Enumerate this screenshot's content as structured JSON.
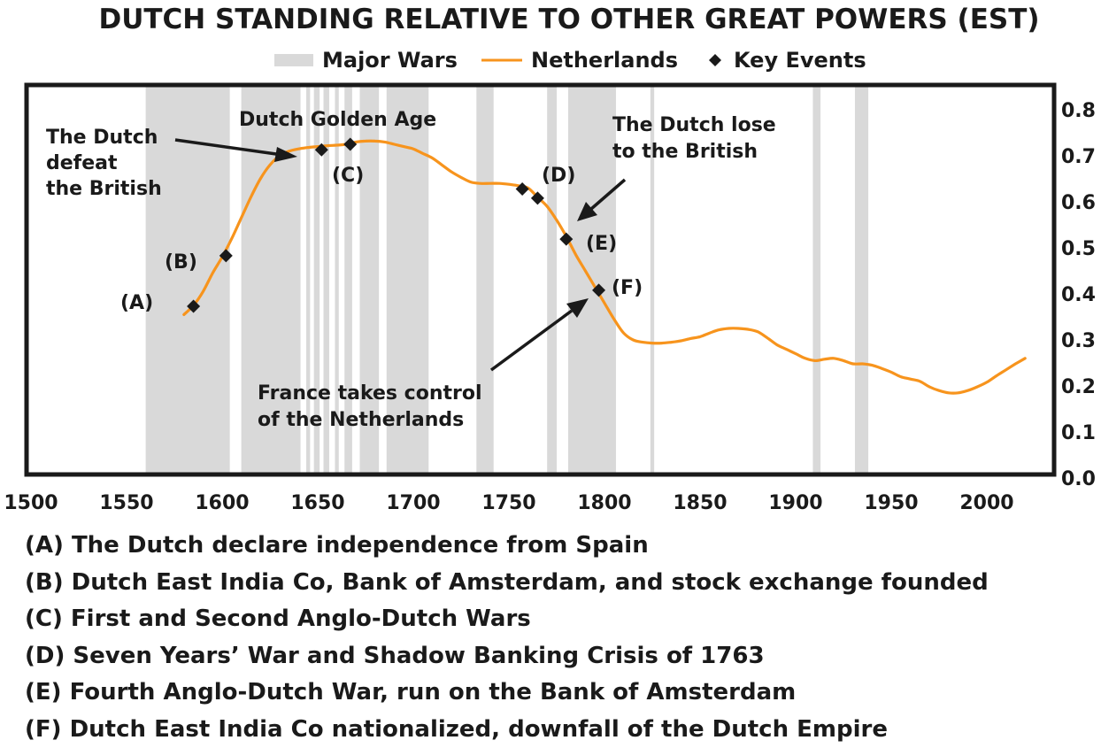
{
  "chart_data": {
    "type": "line",
    "title": "DUTCH STANDING RELATIVE TO OTHER GREAT POWERS (EST)",
    "legend": [
      {
        "key": "wars",
        "label": "Major Wars",
        "color": "#d9d9d9",
        "marker": "band"
      },
      {
        "key": "series",
        "label": "Netherlands",
        "color": "#f7941d",
        "marker": "line"
      },
      {
        "key": "events",
        "label": "Key Events",
        "color": "#1a1a1a",
        "marker": "diamond"
      }
    ],
    "legend_position": "top-center",
    "xlim": [
      1500,
      2030
    ],
    "ylim": [
      0.0,
      0.8
    ],
    "x_ticks": [
      1500,
      1550,
      1600,
      1650,
      1700,
      1750,
      1800,
      1850,
      1900,
      1950,
      2000
    ],
    "y_ticks": [
      "0.0",
      "0.1",
      "0.2",
      "0.3",
      "0.4",
      "0.5",
      "0.6",
      "0.7",
      "0.8"
    ],
    "y_axis_side": "right",
    "grid": false,
    "war_periods": [
      [
        1560,
        1604
      ],
      [
        1610,
        1641
      ],
      [
        1644,
        1646
      ],
      [
        1648,
        1651
      ],
      [
        1653,
        1656
      ],
      [
        1659,
        1661
      ],
      [
        1664,
        1668
      ],
      [
        1672,
        1682
      ],
      [
        1686,
        1708
      ],
      [
        1733,
        1742
      ],
      [
        1770,
        1775
      ],
      [
        1781,
        1806
      ],
      [
        1824,
        1826
      ],
      [
        1909,
        1913
      ],
      [
        1931,
        1938
      ]
    ],
    "series": [
      {
        "name": "Netherlands",
        "color": "#f7941d",
        "x": [
          1580,
          1585,
          1590,
          1595,
          1600,
          1605,
          1610,
          1615,
          1620,
          1625,
          1630,
          1635,
          1640,
          1645,
          1650,
          1655,
          1660,
          1665,
          1670,
          1675,
          1680,
          1685,
          1690,
          1695,
          1700,
          1705,
          1710,
          1715,
          1720,
          1725,
          1730,
          1735,
          1740,
          1745,
          1750,
          1755,
          1760,
          1765,
          1770,
          1775,
          1780,
          1785,
          1790,
          1795,
          1800,
          1805,
          1810,
          1815,
          1820,
          1825,
          1830,
          1835,
          1840,
          1845,
          1850,
          1855,
          1860,
          1865,
          1870,
          1875,
          1880,
          1885,
          1890,
          1895,
          1900,
          1905,
          1910,
          1915,
          1920,
          1925,
          1930,
          1935,
          1940,
          1945,
          1950,
          1955,
          1960,
          1965,
          1970,
          1975,
          1980,
          1985,
          1990,
          1995,
          2000,
          2005,
          2010,
          2015,
          2020
        ],
        "y": [
          0.355,
          0.375,
          0.405,
          0.445,
          0.48,
          0.52,
          0.565,
          0.61,
          0.65,
          0.68,
          0.7,
          0.71,
          0.715,
          0.718,
          0.72,
          0.722,
          0.723,
          0.725,
          0.73,
          0.732,
          0.732,
          0.73,
          0.725,
          0.72,
          0.715,
          0.705,
          0.695,
          0.68,
          0.665,
          0.653,
          0.643,
          0.64,
          0.64,
          0.64,
          0.638,
          0.635,
          0.63,
          0.61,
          0.59,
          0.56,
          0.525,
          0.485,
          0.45,
          0.415,
          0.38,
          0.345,
          0.315,
          0.3,
          0.295,
          0.293,
          0.293,
          0.295,
          0.298,
          0.303,
          0.307,
          0.315,
          0.322,
          0.325,
          0.325,
          0.323,
          0.318,
          0.305,
          0.29,
          0.28,
          0.27,
          0.26,
          0.255,
          0.258,
          0.26,
          0.255,
          0.248,
          0.248,
          0.245,
          0.238,
          0.23,
          0.22,
          0.215,
          0.21,
          0.198,
          0.19,
          0.185,
          0.185,
          0.19,
          0.198,
          0.208,
          0.222,
          0.235,
          0.248,
          0.26
        ]
      }
    ],
    "events": [
      {
        "label": "(A)",
        "x": 1585,
        "y": 0.373
      },
      {
        "label": "(B)",
        "x": 1602,
        "y": 0.483
      },
      {
        "label": "(C)",
        "x": 1652,
        "y": 0.713
      },
      {
        "label": "(C)",
        "x": 1667,
        "y": 0.725
      },
      {
        "label": "(D)",
        "x": 1757,
        "y": 0.628
      },
      {
        "label": "(D)",
        "x": 1765,
        "y": 0.608
      },
      {
        "label": "(E)",
        "x": 1780,
        "y": 0.519
      },
      {
        "label": "(F)",
        "x": 1797,
        "y": 0.408
      }
    ],
    "annotations": [
      {
        "lines": [
          "The Dutch",
          "defeat",
          "the British"
        ]
      },
      {
        "lines": [
          "Dutch Golden Age"
        ]
      },
      {
        "lines": [
          "The Dutch lose",
          "to the British"
        ]
      },
      {
        "lines": [
          "France takes control",
          "of the Netherlands"
        ]
      }
    ],
    "footnotes": [
      "(A) The Dutch declare independence from Spain",
      "(B)  Dutch East India Co, Bank of Amsterdam, and stock exchange founded",
      "(C) First and Second Anglo-Dutch Wars",
      "(D)  Seven Years’ War and Shadow Banking Crisis of 1763",
      "(E)  Fourth Anglo-Dutch War, run on the Bank of Amsterdam",
      "(F)  Dutch East India Co nationalized, downfall of the Dutch Empire"
    ]
  }
}
